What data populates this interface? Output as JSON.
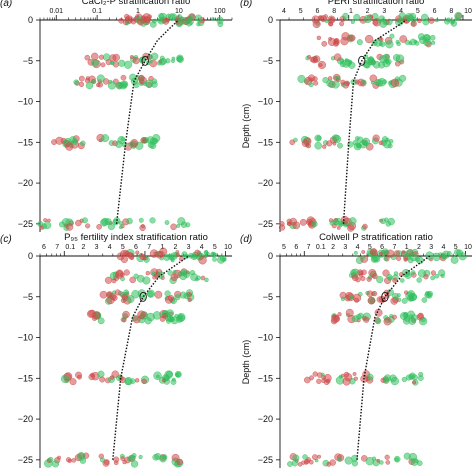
{
  "chart_data": [
    {
      "type": "scatter",
      "panel_label": "(a)",
      "title": "CaCl₂-P stratification ratio",
      "xlabel": "CaCl₂-P stratification ratio",
      "ylabel": "",
      "x_scale": "log",
      "xlim": [
        0.004,
        200
      ],
      "ylim": [
        -26,
        0
      ],
      "x_ticks_major": [
        0.01,
        0.1,
        1,
        10,
        100
      ],
      "x_tick_labels": [
        "0.01",
        "0.1",
        "1",
        "10",
        "100"
      ],
      "y_ticks": [
        0,
        -5,
        -10,
        -15,
        -20,
        -25
      ],
      "y_tick_labels": [
        "0",
        "−5",
        "−10",
        "−15",
        "−20",
        "−25"
      ],
      "depth_layers": [
        0,
        -5,
        -7.5,
        -15,
        -25
      ],
      "layer_x_range": [
        [
          0.3,
          120
        ],
        [
          0.05,
          12
        ],
        [
          0.03,
          3
        ],
        [
          0.005,
          3
        ],
        [
          0.004,
          20
        ]
      ],
      "trend_line": {
        "style": "dotted",
        "x": [
          0.3,
          0.5,
          0.8,
          1.5,
          3,
          6,
          10
        ],
        "y": [
          -25,
          -15,
          -7.5,
          -5,
          -2.5,
          -1,
          0
        ]
      },
      "marker_colors": [
        "#2fbf5c",
        "#cf4a4a"
      ],
      "grid": false,
      "legend": "none"
    },
    {
      "type": "scatter",
      "panel_label": "(b)",
      "title": "PERI stratification ratio",
      "xlabel": "PERI stratification ratio",
      "ylabel": "Depth (cm)",
      "x_scale": "log",
      "xlim": [
        0.25,
        12
      ],
      "ylim": [
        -26,
        0
      ],
      "x_ticks_major": [
        1,
        10
      ],
      "x_tick_labels": [
        "4",
        "5",
        "6",
        "8",
        "1",
        "2",
        "3",
        "4",
        "5",
        "6",
        "8",
        "10"
      ],
      "y_ticks": [
        0,
        -5,
        -10,
        -15,
        -20,
        -25
      ],
      "y_tick_labels": [
        "0",
        "−5",
        "−10",
        "−15",
        "−20",
        "−25"
      ],
      "depth_layers": [
        0,
        -2.5,
        -5,
        -7.5,
        -15,
        -25
      ],
      "layer_x_range": [
        [
          0.5,
          10
        ],
        [
          0.5,
          6
        ],
        [
          0.4,
          3
        ],
        [
          0.35,
          3
        ],
        [
          0.3,
          2.5
        ],
        [
          0.25,
          2.5
        ]
      ],
      "trend_line": {
        "style": "dotted",
        "x": [
          0.9,
          1.0,
          1.1,
          1.3,
          1.7,
          2.5,
          3.2
        ],
        "y": [
          -25,
          -15,
          -7.5,
          -5,
          -2.5,
          -1,
          0
        ]
      },
      "marker_colors": [
        "#2fbf5c",
        "#cf4a4a"
      ],
      "grid": false,
      "legend": "none"
    },
    {
      "type": "scatter",
      "panel_label": "(c)",
      "title": "P₉₅ fertility index stratification ratio",
      "xlabel": "P95 fertility index stratification ratio",
      "ylabel": "",
      "x_scale": "log",
      "xlim": [
        0.05,
        12
      ],
      "ylim": [
        -26,
        0
      ],
      "x_ticks_major": [
        0.1,
        1,
        10
      ],
      "x_tick_labels": [
        "6",
        "7",
        "0.1",
        "2",
        "3",
        "4",
        "5",
        "6",
        "7",
        "1",
        "2",
        "3",
        "4",
        "5",
        "10"
      ],
      "y_ticks": [
        0,
        -5,
        -10,
        -15,
        -20,
        -25
      ],
      "y_tick_labels": [
        "0",
        "−5",
        "−10",
        "−15",
        "−20",
        "−25"
      ],
      "depth_layers": [
        0,
        -2.5,
        -5,
        -7.5,
        -15,
        -25
      ],
      "layer_x_range": [
        [
          0.4,
          10
        ],
        [
          0.35,
          6
        ],
        [
          0.3,
          4
        ],
        [
          0.2,
          3
        ],
        [
          0.1,
          3
        ],
        [
          0.06,
          3
        ]
      ],
      "trend_line": {
        "style": "dotted",
        "x": [
          0.4,
          0.5,
          0.7,
          0.95,
          1.5,
          2.5,
          3.5
        ],
        "y": [
          -25,
          -15,
          -7.5,
          -5,
          -2.5,
          -1,
          0
        ]
      },
      "marker_colors": [
        "#2fbf5c",
        "#cf4a4a"
      ],
      "grid": false,
      "legend": "none"
    },
    {
      "type": "scatter",
      "panel_label": "(d)",
      "title": "Colwell P stratification ratio",
      "xlabel": "Colwell P stratification ratio",
      "ylabel": "Depth (cm)",
      "x_scale": "log",
      "xlim": [
        0.05,
        12
      ],
      "ylim": [
        -26,
        0
      ],
      "x_ticks_major": [
        0.1,
        1,
        10
      ],
      "x_tick_labels": [
        "5",
        "6",
        "7",
        "0.1",
        "2",
        "3",
        "4",
        "5",
        "6",
        "7",
        "1",
        "2",
        "3",
        "4",
        "5",
        "10"
      ],
      "y_ticks": [
        0,
        -5,
        -10,
        -15,
        -20,
        -25
      ],
      "y_tick_labels": [
        "0",
        "−5",
        "−10",
        "−15",
        "−20",
        "−25"
      ],
      "depth_layers": [
        0,
        -2.5,
        -5,
        -7.5,
        -15,
        -25
      ],
      "layer_x_range": [
        [
          0.4,
          10
        ],
        [
          0.35,
          6
        ],
        [
          0.3,
          4
        ],
        [
          0.2,
          3
        ],
        [
          0.1,
          3
        ],
        [
          0.06,
          3
        ]
      ],
      "trend_line": {
        "style": "dotted",
        "x": [
          0.45,
          0.55,
          0.75,
          1.0,
          1.6,
          2.6,
          3.6
        ],
        "y": [
          -25,
          -15,
          -7.5,
          -5,
          -2.5,
          -1,
          0
        ]
      },
      "marker_colors": [
        "#2fbf5c",
        "#cf4a4a"
      ],
      "grid": false,
      "legend": "none"
    }
  ]
}
